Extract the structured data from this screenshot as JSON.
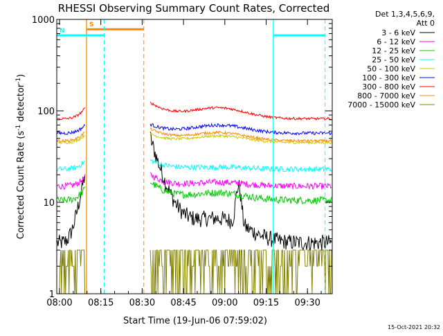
{
  "chart_data": {
    "type": "line",
    "title": "RHESSI Observing Summary Count Rates, Corrected",
    "xlabel": "Start Time (19-Jun-06 07:59:02)",
    "ylabel_base": "Corrected Count Rate (s",
    "ylabel_sup1": "-1",
    "ylabel_mid": " detector",
    "ylabel_sup2": "-1",
    "ylabel_end": ")",
    "x_unit": "minutes since 07:59:02",
    "xlim": [
      0,
      100
    ],
    "ylim": [
      1,
      1000
    ],
    "y_scale": "log",
    "x_ticks": [
      {
        "v": 1,
        "label": "08:00"
      },
      {
        "v": 16,
        "label": "08:15"
      },
      {
        "v": 31,
        "label": "08:30"
      },
      {
        "v": 46,
        "label": "08:45"
      },
      {
        "v": 61,
        "label": "09:00"
      },
      {
        "v": 76,
        "label": "09:15"
      },
      {
        "v": 91,
        "label": "09:30"
      }
    ],
    "y_ticks": [
      {
        "v": 1,
        "label": "1"
      },
      {
        "v": 10,
        "label": "10"
      },
      {
        "v": 100,
        "label": "100"
      },
      {
        "v": 1000,
        "label": "1000"
      }
    ],
    "legend_header": "Det 1,3,4,5,6,9,",
    "legend_header2": "Att 0",
    "legend_position": "right",
    "gaps": [
      [
        10.3,
        33.9
      ]
    ],
    "series": [
      {
        "name": "3 - 6 keV",
        "color": "#000000",
        "base": 3.6,
        "noise": 0.09,
        "bump": 1.8,
        "start": 14,
        "decay": 4
      },
      {
        "name": "6 - 12 keV",
        "color": "#ff00ff",
        "base": 15,
        "noise": 0.035,
        "bump": 1.1,
        "start": 1.35,
        "decay": 5
      },
      {
        "name": "12 - 25 keV",
        "color": "#00cc00",
        "base": 10.5,
        "noise": 0.04,
        "bump": 1.2,
        "start": 1.6,
        "decay": 6
      },
      {
        "name": "25 - 50 keV",
        "color": "#00ffff",
        "base": 23,
        "noise": 0.03,
        "bump": 1.05,
        "start": 1.25,
        "decay": 6
      },
      {
        "name": "50 - 100 keV",
        "color": "#cccc00",
        "base": 45,
        "noise": 0.015,
        "bump": 1.18,
        "start": 1.25,
        "decay": 6
      },
      {
        "name": "100 - 300 keV",
        "color": "#0000ff",
        "base": 57,
        "noise": 0.018,
        "bump": 1.22,
        "start": 1.25,
        "decay": 6
      },
      {
        "name": "300 - 800 keV",
        "color": "#ff0000",
        "base": 82,
        "noise": 0.014,
        "bump": 1.3,
        "start": 1.5,
        "decay": 7
      },
      {
        "name": "800 - 7000 keV",
        "color": "#ff8800",
        "base": 47,
        "noise": 0.014,
        "bump": 1.22,
        "start": 1.35,
        "decay": 7
      },
      {
        "name": "7000 - 15000 keV",
        "color": "#808000",
        "base": 3.0,
        "noise": 0.0,
        "bump": 1.2,
        "start": 1.0,
        "decay": 6
      }
    ],
    "intervals": [
      {
        "name": "SAA",
        "label": "S",
        "color": "#ff8800",
        "x0": 10.8,
        "x1": 31.6,
        "y": 780
      },
      {
        "name": "Night",
        "label": "N",
        "color": "#00ffff",
        "x0": 0,
        "x1": 17.2,
        "y": 670
      },
      {
        "name": "Night",
        "label": "",
        "color": "#00ffff",
        "x0": 78.6,
        "x1": 97.4,
        "y": 670
      }
    ],
    "date_stamp": "15-Oct-2021 20:32"
  }
}
